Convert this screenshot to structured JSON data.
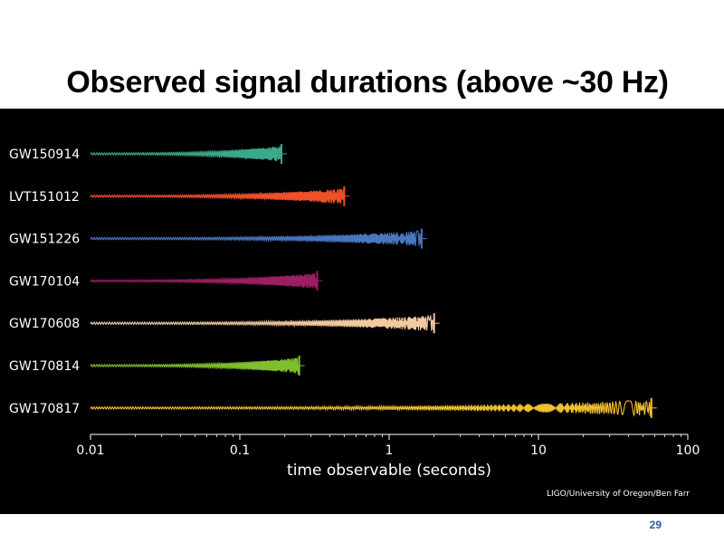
{
  "slide": {
    "title": "Observed signal durations (above ~30 Hz)",
    "page_number": "29",
    "credit": "LIGO/University of Oregon/Ben Farr",
    "background_color": "#000000"
  },
  "chart_data": {
    "type": "line",
    "title": "",
    "xlabel": "time observable (seconds)",
    "ylabel": "",
    "x_scale": "log",
    "xlim": [
      0.01,
      100
    ],
    "x_ticks": [
      0.01,
      0.1,
      1,
      10,
      100
    ],
    "x_tick_labels": [
      "0.01",
      "0.1",
      "1",
      "10",
      "100"
    ],
    "grid": false,
    "legend": "none",
    "series": [
      {
        "name": "GW150914",
        "start": 0.01,
        "end": 0.19,
        "color": "#3aa88a"
      },
      {
        "name": "LVT151012",
        "start": 0.01,
        "end": 0.5,
        "color": "#f0502a"
      },
      {
        "name": "GW151226",
        "start": 0.01,
        "end": 1.65,
        "color": "#4a76bf"
      },
      {
        "name": "GW170104",
        "start": 0.01,
        "end": 0.33,
        "color": "#9c1f64"
      },
      {
        "name": "GW170608",
        "start": 0.01,
        "end": 2.0,
        "color": "#f2c9a1"
      },
      {
        "name": "GW170814",
        "start": 0.01,
        "end": 0.25,
        "color": "#7fbf2e"
      },
      {
        "name": "GW170817",
        "start": 0.01,
        "end": 57,
        "color": "#f0c030"
      }
    ]
  }
}
